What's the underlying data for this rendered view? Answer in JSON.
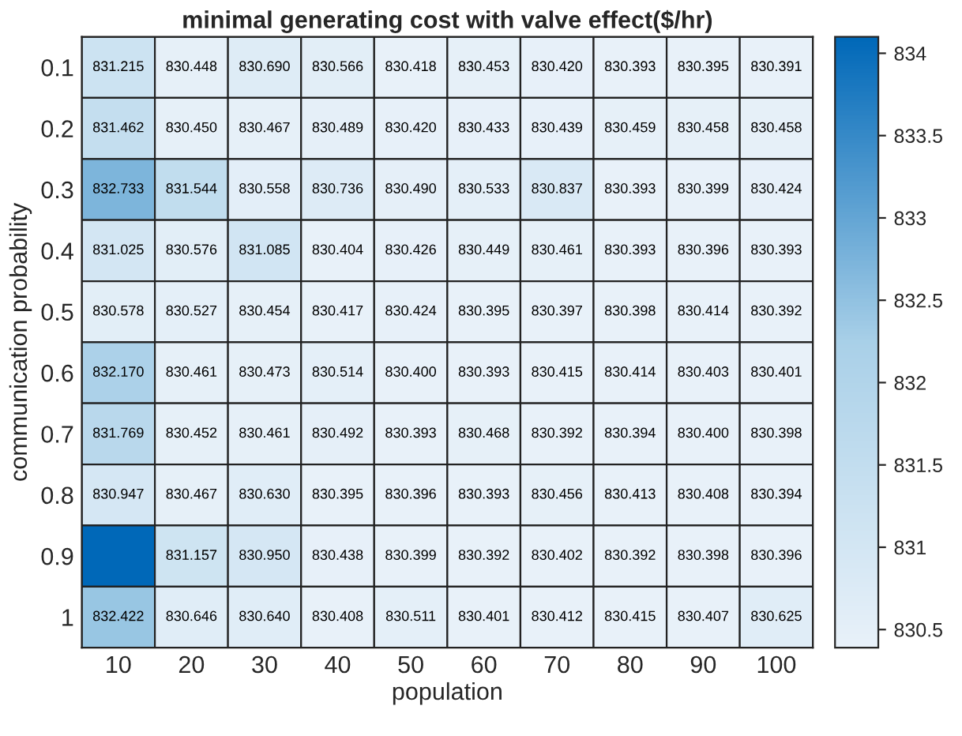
{
  "chart_data": {
    "type": "heatmap",
    "title": "minimal generating cost with valve effect($/hr)",
    "xlabel": "population",
    "ylabel": "communication probability",
    "categories": [
      "10",
      "20",
      "30",
      "40",
      "50",
      "60",
      "70",
      "80",
      "90",
      "100"
    ],
    "y_categories": [
      "0.1",
      "0.2",
      "0.3",
      "0.4",
      "0.5",
      "0.6",
      "0.7",
      "0.8",
      "0.9",
      "1"
    ],
    "cells": [
      [
        831.215,
        830.448,
        830.69,
        830.566,
        830.418,
        830.453,
        830.42,
        830.393,
        830.395,
        830.391
      ],
      [
        831.462,
        830.45,
        830.467,
        830.489,
        830.42,
        830.433,
        830.439,
        830.459,
        830.458,
        830.458
      ],
      [
        832.733,
        831.544,
        830.558,
        830.736,
        830.49,
        830.533,
        830.837,
        830.393,
        830.399,
        830.424
      ],
      [
        831.025,
        830.576,
        831.085,
        830.404,
        830.426,
        830.449,
        830.461,
        830.393,
        830.396,
        830.393
      ],
      [
        830.578,
        830.527,
        830.454,
        830.417,
        830.424,
        830.395,
        830.397,
        830.398,
        830.414,
        830.392
      ],
      [
        832.17,
        830.461,
        830.473,
        830.514,
        830.4,
        830.393,
        830.415,
        830.414,
        830.403,
        830.401
      ],
      [
        831.769,
        830.452,
        830.461,
        830.492,
        830.393,
        830.468,
        830.392,
        830.394,
        830.4,
        830.398
      ],
      [
        830.947,
        830.467,
        830.63,
        830.395,
        830.396,
        830.393,
        830.456,
        830.413,
        830.408,
        830.394
      ],
      [
        834.1,
        831.157,
        830.95,
        830.438,
        830.399,
        830.392,
        830.402,
        830.392,
        830.398,
        830.396
      ],
      [
        832.422,
        830.646,
        830.64,
        830.408,
        830.511,
        830.401,
        830.412,
        830.415,
        830.407,
        830.625
      ]
    ],
    "cell_labels": [
      [
        "831.215",
        "830.448",
        "830.690",
        "830.566",
        "830.418",
        "830.453",
        "830.420",
        "830.393",
        "830.395",
        "830.391"
      ],
      [
        "831.462",
        "830.450",
        "830.467",
        "830.489",
        "830.420",
        "830.433",
        "830.439",
        "830.459",
        "830.458",
        "830.458"
      ],
      [
        "832.733",
        "831.544",
        "830.558",
        "830.736",
        "830.490",
        "830.533",
        "830.837",
        "830.393",
        "830.399",
        "830.424"
      ],
      [
        "831.025",
        "830.576",
        "831.085",
        "830.404",
        "830.426",
        "830.449",
        "830.461",
        "830.393",
        "830.396",
        "830.393"
      ],
      [
        "830.578",
        "830.527",
        "830.454",
        "830.417",
        "830.424",
        "830.395",
        "830.397",
        "830.398",
        "830.414",
        "830.392"
      ],
      [
        "832.170",
        "830.461",
        "830.473",
        "830.514",
        "830.400",
        "830.393",
        "830.415",
        "830.414",
        "830.403",
        "830.401"
      ],
      [
        "831.769",
        "830.452",
        "830.461",
        "830.492",
        "830.393",
        "830.468",
        "830.392",
        "830.394",
        "830.400",
        "830.398"
      ],
      [
        "830.947",
        "830.467",
        "830.630",
        "830.395",
        "830.396",
        "830.393",
        "830.456",
        "830.413",
        "830.408",
        "830.394"
      ],
      [
        null,
        "831.157",
        "830.950",
        "830.438",
        "830.399",
        "830.392",
        "830.402",
        "830.392",
        "830.398",
        "830.396"
      ],
      [
        "832.422",
        "830.646",
        "830.640",
        "830.408",
        "830.511",
        "830.401",
        "830.412",
        "830.415",
        "830.407",
        "830.625"
      ]
    ],
    "clim": [
      830.39,
      834.1
    ],
    "cticks": [
      {
        "value": 830.5,
        "label": "830.5"
      },
      831,
      {
        "value": 831.5,
        "label": "831.5"
      },
      832,
      {
        "value": 832.5,
        "label": "832.5"
      },
      833,
      {
        "value": 833.5,
        "label": "833.5"
      },
      834
    ]
  }
}
